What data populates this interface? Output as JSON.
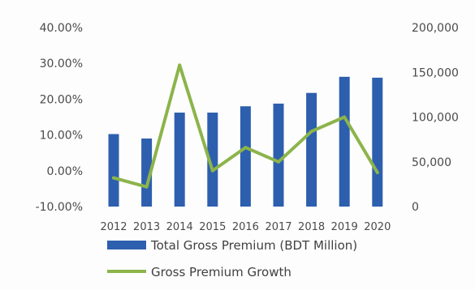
{
  "chart_data": {
    "type": "bar",
    "categories": [
      "2012",
      "2013",
      "2014",
      "2015",
      "2016",
      "2017",
      "2018",
      "2019",
      "2020"
    ],
    "series": [
      {
        "name": "Total Gross Premium (BDT Million)",
        "type": "bar",
        "axis": "right",
        "color": "#2e5fae",
        "values": [
          81000,
          76000,
          105000,
          105000,
          112000,
          115000,
          127000,
          145000,
          144000
        ]
      },
      {
        "name": "Gross Premium Growth",
        "type": "line",
        "axis": "left",
        "unit": "%",
        "color": "#8cb44a",
        "values": [
          -2.0,
          -4.5,
          29.5,
          0.0,
          6.5,
          2.5,
          11.0,
          15.0,
          -0.5
        ]
      }
    ],
    "y_left": {
      "range": [
        -10,
        40
      ],
      "ticks": [
        "-10.00%",
        "0.00%",
        "10.00%",
        "20.00%",
        "30.00%",
        "40.00%"
      ]
    },
    "y_right": {
      "range": [
        0,
        200000
      ],
      "ticks": [
        "0",
        "50,000",
        "100,000",
        "150,000",
        "200,000"
      ]
    },
    "grid": false,
    "legend_position": "bottom"
  }
}
